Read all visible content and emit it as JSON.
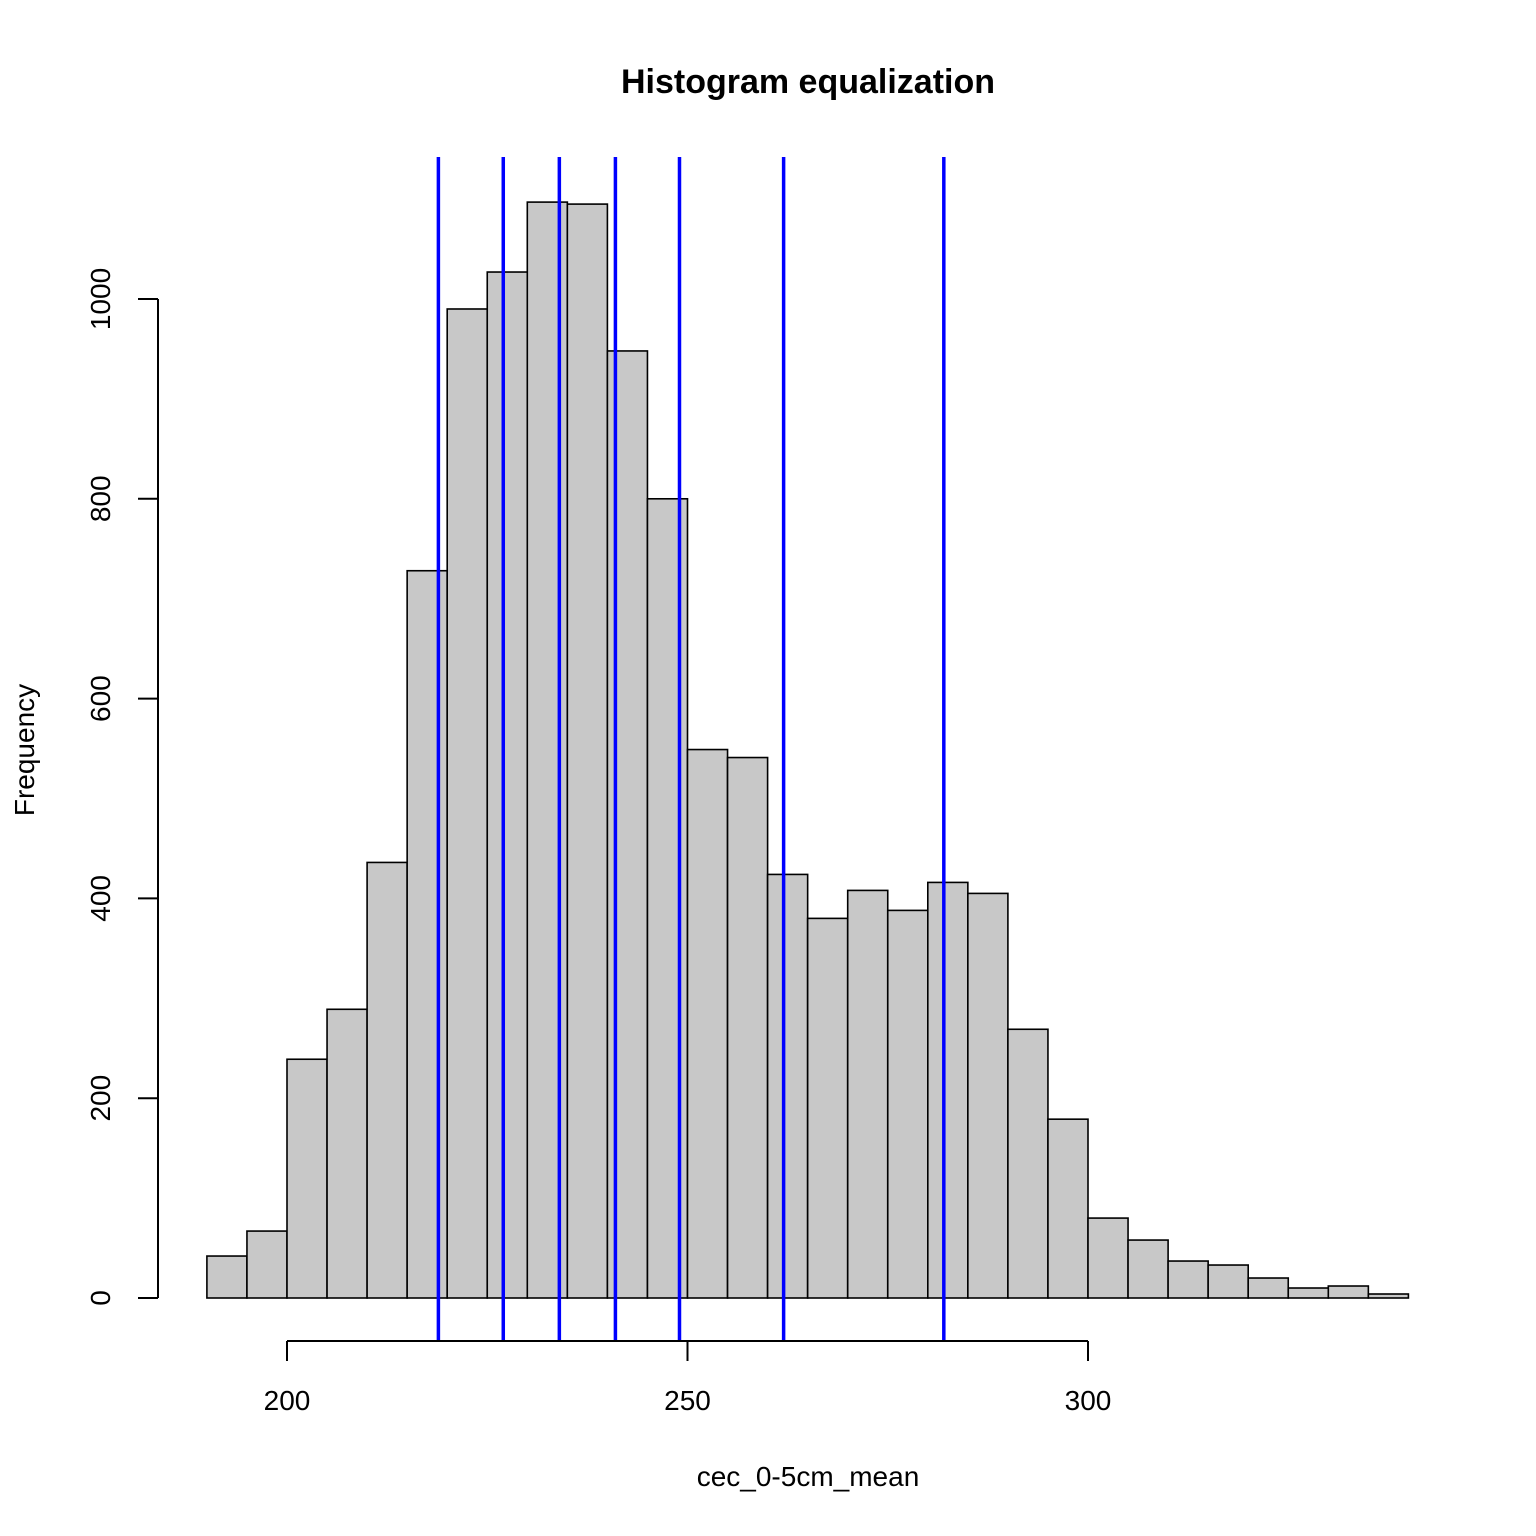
{
  "chart_data": {
    "type": "bar",
    "title": "Histogram equalization",
    "xlabel": "cec_0-5cm_mean",
    "ylabel": "Frequency",
    "bin_width": 5,
    "bins": [
      {
        "start": 190,
        "end": 195,
        "count": 42
      },
      {
        "start": 195,
        "end": 200,
        "count": 67
      },
      {
        "start": 200,
        "end": 205,
        "count": 239
      },
      {
        "start": 205,
        "end": 210,
        "count": 289
      },
      {
        "start": 210,
        "end": 215,
        "count": 436
      },
      {
        "start": 215,
        "end": 220,
        "count": 728
      },
      {
        "start": 220,
        "end": 225,
        "count": 990
      },
      {
        "start": 225,
        "end": 230,
        "count": 1027
      },
      {
        "start": 230,
        "end": 235,
        "count": 1097
      },
      {
        "start": 235,
        "end": 240,
        "count": 1095
      },
      {
        "start": 240,
        "end": 245,
        "count": 948
      },
      {
        "start": 245,
        "end": 250,
        "count": 800
      },
      {
        "start": 250,
        "end": 255,
        "count": 549
      },
      {
        "start": 255,
        "end": 260,
        "count": 541
      },
      {
        "start": 260,
        "end": 265,
        "count": 424
      },
      {
        "start": 265,
        "end": 270,
        "count": 380
      },
      {
        "start": 270,
        "end": 275,
        "count": 408
      },
      {
        "start": 275,
        "end": 280,
        "count": 388
      },
      {
        "start": 280,
        "end": 285,
        "count": 416
      },
      {
        "start": 285,
        "end": 290,
        "count": 405
      },
      {
        "start": 290,
        "end": 295,
        "count": 269
      },
      {
        "start": 295,
        "end": 300,
        "count": 179
      },
      {
        "start": 300,
        "end": 305,
        "count": 80
      },
      {
        "start": 305,
        "end": 310,
        "count": 58
      },
      {
        "start": 310,
        "end": 315,
        "count": 37
      },
      {
        "start": 315,
        "end": 320,
        "count": 33
      },
      {
        "start": 320,
        "end": 325,
        "count": 20
      },
      {
        "start": 325,
        "end": 330,
        "count": 10
      },
      {
        "start": 330,
        "end": 335,
        "count": 12
      },
      {
        "start": 335,
        "end": 340,
        "count": 4
      }
    ],
    "vlines": [
      218.9,
      227.0,
      234.0,
      241.0,
      249.0,
      262.0,
      282.0
    ],
    "vline_color": "#0000ff",
    "bar_fill": "#c8c8c8",
    "xticks": [
      200,
      250,
      300
    ],
    "yticks": [
      0,
      200,
      400,
      600,
      800,
      1000
    ],
    "xlim": [
      190,
      340
    ],
    "ylim": [
      0,
      1100
    ],
    "grid": false,
    "legend": "none"
  }
}
